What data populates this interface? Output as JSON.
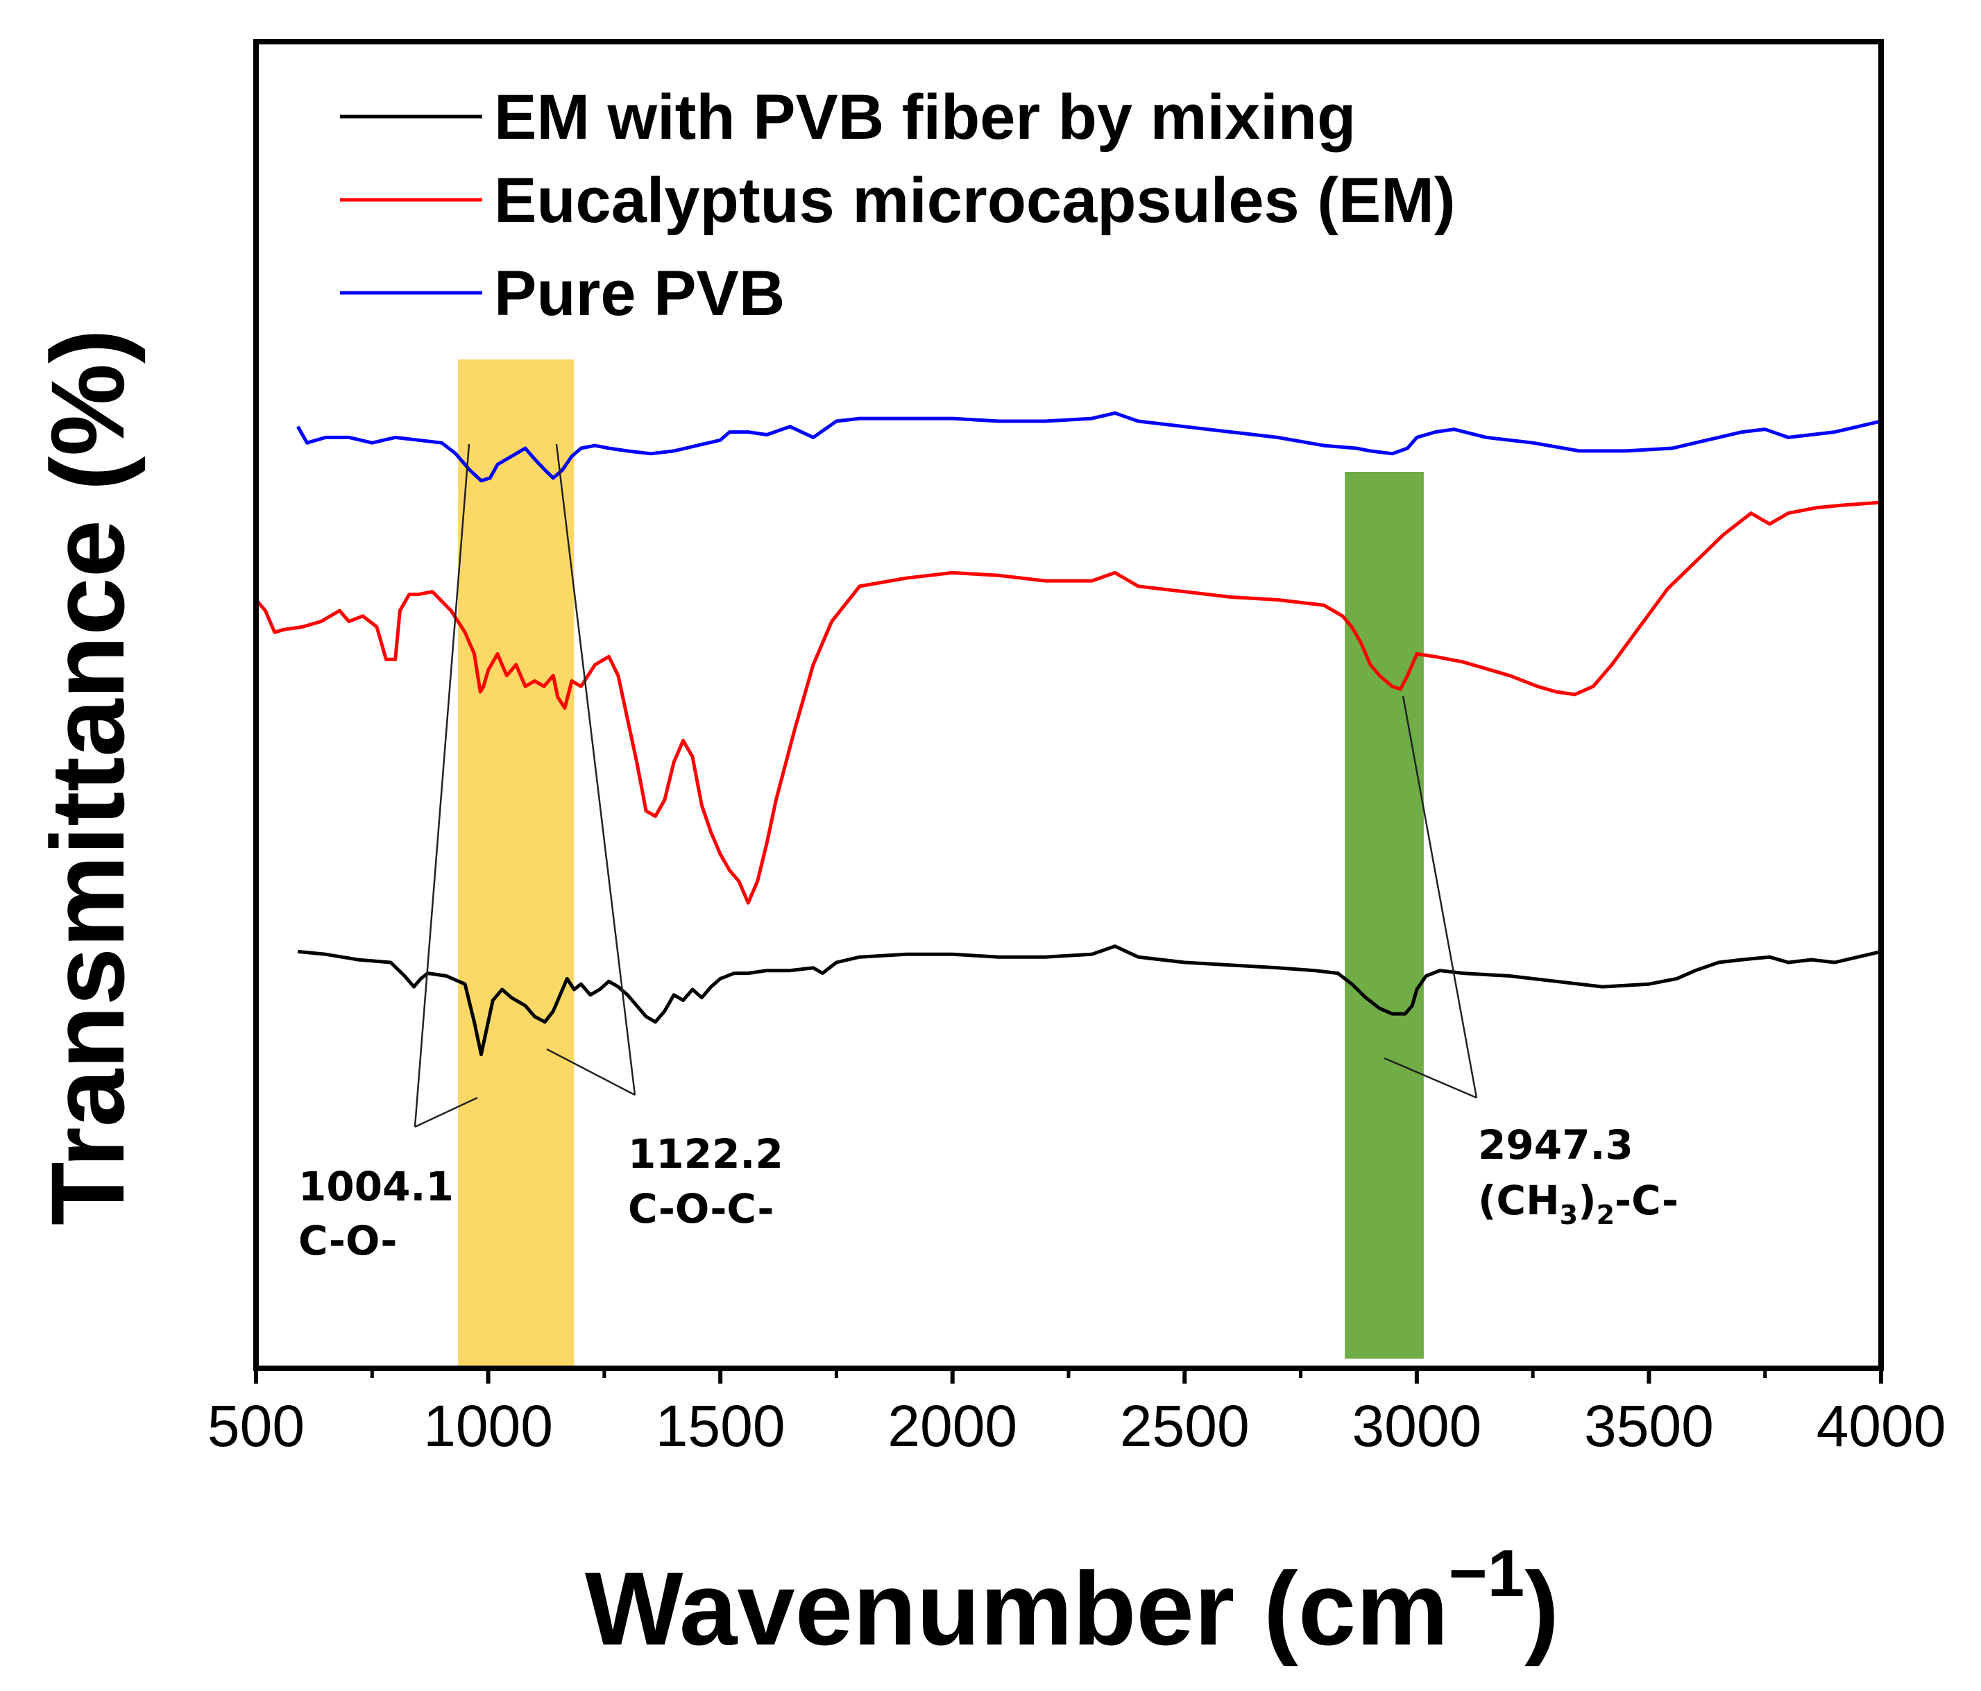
{
  "chart_data": {
    "type": "line",
    "title": "",
    "xlabel": "Wavenumber (cm",
    "xlabel_superscript": "−1",
    "ylabel": "Transmittance (%)",
    "xlim": [
      500,
      4000
    ],
    "x_ticks": [
      "500",
      "1000",
      "1500",
      "2000",
      "2500",
      "3000",
      "3500",
      "4000"
    ],
    "y_ticks_shown": false,
    "legend_position": "top-left",
    "highlight_bands": [
      {
        "name": "yellow-band",
        "x_range": [
          935,
          1185
        ],
        "color": "#fcd966"
      },
      {
        "name": "green-band",
        "x_range": [
          2845,
          3015
        ],
        "color": "#70ad47"
      }
    ],
    "series": [
      {
        "name": "EM with PVB fiber by mixing",
        "color": "#000000",
        "note": "relative transmittance, arbitrary units (vertically offset curve)",
        "points": [
          [
            590,
            77
          ],
          [
            650,
            76.5
          ],
          [
            720,
            75.5
          ],
          [
            790,
            75
          ],
          [
            820,
            72.5
          ],
          [
            840,
            70.5
          ],
          [
            855,
            72
          ],
          [
            870,
            73
          ],
          [
            910,
            72.5
          ],
          [
            950,
            71
          ],
          [
            970,
            64
          ],
          [
            985,
            58
          ],
          [
            995,
            62
          ],
          [
            1010,
            68
          ],
          [
            1030,
            70
          ],
          [
            1050,
            68.5
          ],
          [
            1080,
            67
          ],
          [
            1100,
            65
          ],
          [
            1122,
            64
          ],
          [
            1140,
            66
          ],
          [
            1155,
            69
          ],
          [
            1170,
            72
          ],
          [
            1185,
            70
          ],
          [
            1200,
            71
          ],
          [
            1220,
            69
          ],
          [
            1240,
            70
          ],
          [
            1260,
            71.5
          ],
          [
            1280,
            70.5
          ],
          [
            1300,
            69
          ],
          [
            1320,
            67
          ],
          [
            1340,
            65
          ],
          [
            1360,
            64
          ],
          [
            1380,
            66
          ],
          [
            1400,
            69
          ],
          [
            1420,
            68
          ],
          [
            1440,
            70
          ],
          [
            1460,
            68.5
          ],
          [
            1480,
            70.5
          ],
          [
            1500,
            72
          ],
          [
            1530,
            73
          ],
          [
            1560,
            73
          ],
          [
            1600,
            73.5
          ],
          [
            1650,
            73.5
          ],
          [
            1700,
            74
          ],
          [
            1720,
            73
          ],
          [
            1750,
            75
          ],
          [
            1800,
            76
          ],
          [
            1900,
            76.5
          ],
          [
            2000,
            76.5
          ],
          [
            2100,
            76
          ],
          [
            2200,
            76
          ],
          [
            2300,
            76.5
          ],
          [
            2350,
            78
          ],
          [
            2400,
            76
          ],
          [
            2500,
            75
          ],
          [
            2600,
            74.5
          ],
          [
            2700,
            74
          ],
          [
            2780,
            73.5
          ],
          [
            2830,
            73
          ],
          [
            2860,
            71
          ],
          [
            2890,
            68.5
          ],
          [
            2920,
            66.5
          ],
          [
            2947,
            65.5
          ],
          [
            2975,
            65.5
          ],
          [
            2990,
            67
          ],
          [
            3000,
            70
          ],
          [
            3020,
            72.5
          ],
          [
            3050,
            73.5
          ],
          [
            3100,
            73
          ],
          [
            3200,
            72.5
          ],
          [
            3300,
            71.5
          ],
          [
            3400,
            70.5
          ],
          [
            3500,
            71
          ],
          [
            3560,
            72
          ],
          [
            3600,
            73.5
          ],
          [
            3650,
            75
          ],
          [
            3700,
            75.5
          ],
          [
            3760,
            76
          ],
          [
            3800,
            75
          ],
          [
            3850,
            75.5
          ],
          [
            3900,
            75
          ],
          [
            3950,
            76
          ],
          [
            4000,
            77
          ]
        ]
      },
      {
        "name": "Eucalyptus microcapsules (EM)",
        "color": "#ff0000",
        "note": "relative transmittance, arbitrary units (vertically offset curve)",
        "points": [
          [
            500,
            142
          ],
          [
            520,
            140
          ],
          [
            540,
            136
          ],
          [
            560,
            136.5
          ],
          [
            600,
            137
          ],
          [
            640,
            138
          ],
          [
            680,
            140
          ],
          [
            700,
            138
          ],
          [
            730,
            139
          ],
          [
            760,
            137
          ],
          [
            780,
            131
          ],
          [
            800,
            131
          ],
          [
            810,
            140
          ],
          [
            830,
            143
          ],
          [
            850,
            143
          ],
          [
            880,
            143.5
          ],
          [
            920,
            140
          ],
          [
            950,
            136
          ],
          [
            970,
            132
          ],
          [
            983,
            125
          ],
          [
            990,
            126
          ],
          [
            1000,
            129
          ],
          [
            1020,
            132
          ],
          [
            1040,
            128
          ],
          [
            1060,
            130
          ],
          [
            1080,
            126
          ],
          [
            1100,
            127
          ],
          [
            1120,
            126
          ],
          [
            1140,
            128
          ],
          [
            1150,
            124
          ],
          [
            1165,
            122
          ],
          [
            1180,
            127
          ],
          [
            1200,
            126
          ],
          [
            1230,
            130
          ],
          [
            1260,
            131.5
          ],
          [
            1280,
            128
          ],
          [
            1300,
            120
          ],
          [
            1320,
            112
          ],
          [
            1340,
            103
          ],
          [
            1360,
            102
          ],
          [
            1380,
            105
          ],
          [
            1400,
            112
          ],
          [
            1420,
            116
          ],
          [
            1440,
            113
          ],
          [
            1460,
            104
          ],
          [
            1480,
            99
          ],
          [
            1500,
            95
          ],
          [
            1520,
            92
          ],
          [
            1540,
            90
          ],
          [
            1560,
            86
          ],
          [
            1580,
            90
          ],
          [
            1600,
            97
          ],
          [
            1620,
            105
          ],
          [
            1660,
            118
          ],
          [
            1700,
            130
          ],
          [
            1740,
            138
          ],
          [
            1800,
            144.5
          ],
          [
            1900,
            146
          ],
          [
            2000,
            147
          ],
          [
            2100,
            146.5
          ],
          [
            2200,
            145.5
          ],
          [
            2300,
            145.5
          ],
          [
            2350,
            147
          ],
          [
            2400,
            144.5
          ],
          [
            2500,
            143.5
          ],
          [
            2600,
            142.5
          ],
          [
            2700,
            142
          ],
          [
            2800,
            141
          ],
          [
            2840,
            139
          ],
          [
            2860,
            137
          ],
          [
            2880,
            134
          ],
          [
            2900,
            130
          ],
          [
            2920,
            128
          ],
          [
            2947,
            126
          ],
          [
            2965,
            125.5
          ],
          [
            2980,
            128
          ],
          [
            3000,
            132
          ],
          [
            3040,
            131.5
          ],
          [
            3100,
            130.5
          ],
          [
            3200,
            128
          ],
          [
            3260,
            126
          ],
          [
            3300,
            125
          ],
          [
            3340,
            124.5
          ],
          [
            3380,
            126
          ],
          [
            3420,
            130
          ],
          [
            3480,
            137
          ],
          [
            3540,
            144
          ],
          [
            3600,
            149
          ],
          [
            3660,
            154
          ],
          [
            3720,
            158
          ],
          [
            3760,
            156
          ],
          [
            3800,
            158
          ],
          [
            3860,
            159
          ],
          [
            3920,
            159.5
          ],
          [
            4000,
            160
          ]
        ]
      },
      {
        "name": "Pure PVB",
        "color": "#0000ff",
        "note": "relative transmittance, arbitrary units (vertically offset curve)",
        "points": [
          [
            590,
            174
          ],
          [
            610,
            171
          ],
          [
            650,
            172
          ],
          [
            700,
            172
          ],
          [
            750,
            171
          ],
          [
            800,
            172
          ],
          [
            850,
            171.5
          ],
          [
            900,
            171
          ],
          [
            930,
            169
          ],
          [
            960,
            166
          ],
          [
            985,
            164
          ],
          [
            1004,
            164.5
          ],
          [
            1020,
            167
          ],
          [
            1040,
            168
          ],
          [
            1060,
            169
          ],
          [
            1080,
            170
          ],
          [
            1100,
            168
          ],
          [
            1122,
            166
          ],
          [
            1140,
            164.5
          ],
          [
            1160,
            166
          ],
          [
            1180,
            168.5
          ],
          [
            1200,
            170
          ],
          [
            1230,
            170.5
          ],
          [
            1260,
            170
          ],
          [
            1300,
            169.5
          ],
          [
            1350,
            169
          ],
          [
            1400,
            169.5
          ],
          [
            1450,
            170.5
          ],
          [
            1500,
            171.5
          ],
          [
            1520,
            173
          ],
          [
            1560,
            173
          ],
          [
            1600,
            172.5
          ],
          [
            1650,
            174
          ],
          [
            1700,
            172
          ],
          [
            1750,
            175
          ],
          [
            1800,
            175.5
          ],
          [
            1900,
            175.5
          ],
          [
            2000,
            175.5
          ],
          [
            2100,
            175
          ],
          [
            2200,
            175
          ],
          [
            2300,
            175.5
          ],
          [
            2350,
            176.5
          ],
          [
            2400,
            175
          ],
          [
            2500,
            174
          ],
          [
            2600,
            173
          ],
          [
            2700,
            172
          ],
          [
            2800,
            170.5
          ],
          [
            2870,
            170
          ],
          [
            2900,
            169.5
          ],
          [
            2947,
            169
          ],
          [
            2980,
            170
          ],
          [
            3000,
            172
          ],
          [
            3040,
            173
          ],
          [
            3080,
            173.5
          ],
          [
            3150,
            172
          ],
          [
            3250,
            171
          ],
          [
            3350,
            169.5
          ],
          [
            3450,
            169.5
          ],
          [
            3550,
            170
          ],
          [
            3600,
            171
          ],
          [
            3650,
            172
          ],
          [
            3700,
            173
          ],
          [
            3750,
            173.5
          ],
          [
            3800,
            172
          ],
          [
            3850,
            172.5
          ],
          [
            3900,
            173
          ],
          [
            3950,
            174
          ],
          [
            4000,
            175
          ]
        ]
      }
    ],
    "annotations": [
      {
        "name": "annotation-1004",
        "lines": [
          "1004.1",
          "C-O-"
        ]
      },
      {
        "name": "annotation-1122",
        "lines": [
          "1122.2",
          "C-O-C-"
        ]
      },
      {
        "name": "annotation-2947",
        "lines": [
          "2947.3"
        ],
        "formula": {
          "open": "(CH",
          "sub1": "3",
          "close": ")",
          "sub2": "2",
          "tail": "-C-"
        }
      }
    ]
  }
}
